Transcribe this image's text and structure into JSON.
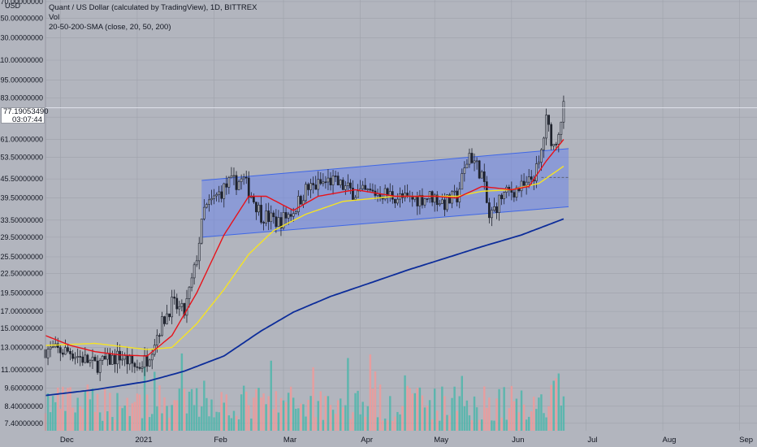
{
  "header": {
    "title": "Quant / US Dollar (calculated by TradingView), 1D, BITTREX",
    "volume_label": "Vol",
    "sma_label": "20-50-200-SMA (close, 20, 50, 200)"
  },
  "currency": "USD",
  "last_price": {
    "value": "77.19053490",
    "countdown": "03:07:44"
  },
  "colors": {
    "background": "#b2b5be",
    "up": "#4db6ac",
    "down": "#ef9a9a",
    "candle": "#1e222d",
    "sma20": "#e8121a",
    "sma50": "#f5e324",
    "sma200": "#0d2d9a",
    "channel_fill": "#6d85e8",
    "channel_line": "#3f67e6"
  },
  "chart_data": {
    "type": "candlestick",
    "title": "Quant / US Dollar (calculated by TradingView), 1D, BITTREX",
    "y_scale": "log",
    "ylim": [
      7.0,
      172.0
    ],
    "y_ticks": [
      "170.00000000",
      "150.00000000",
      "130.00000000",
      "110.00000000",
      "95.00000000",
      "83.00000000",
      "72.00000000",
      "61.00000000",
      "53.50000000",
      "45.50000000",
      "39.50000000",
      "33.50000000",
      "29.50000000",
      "25.50000000",
      "22.50000000",
      "19.50000000",
      "17.00000000",
      "15.00000000",
      "13.00000000",
      "11.00000000",
      "9.60000000",
      "8.40000000",
      "7.40000000"
    ],
    "x_ticks": [
      "Dec",
      "2021",
      "Feb",
      "Mar",
      "Apr",
      "May",
      "Jun",
      "Jul",
      "Aug",
      "Sep"
    ],
    "x_range": [
      "2020-11-25",
      "2021-09-08"
    ],
    "last_date": "2021-06-22",
    "grid": true,
    "close_keypoints": [
      [
        "2020-11-25",
        12.8
      ],
      [
        "2020-12-05",
        12.6
      ],
      [
        "2020-12-15",
        11.4
      ],
      [
        "2020-12-25",
        12.2
      ],
      [
        "2021-01-01",
        11.2
      ],
      [
        "2021-01-05",
        12.0
      ],
      [
        "2021-01-10",
        15.0
      ],
      [
        "2021-01-15",
        18.0
      ],
      [
        "2021-01-20",
        16.8
      ],
      [
        "2021-01-24",
        23.0
      ],
      [
        "2021-01-28",
        36.0
      ],
      [
        "2021-02-02",
        40.0
      ],
      [
        "2021-02-07",
        44.0
      ],
      [
        "2021-02-13",
        45.0
      ],
      [
        "2021-02-20",
        35.0
      ],
      [
        "2021-02-27",
        33.0
      ],
      [
        "2021-03-05",
        36.0
      ],
      [
        "2021-03-10",
        42.0
      ],
      [
        "2021-03-20",
        45.0
      ],
      [
        "2021-03-30",
        41.0
      ],
      [
        "2021-04-10",
        41.0
      ],
      [
        "2021-04-20",
        39.0
      ],
      [
        "2021-04-30",
        40.0
      ],
      [
        "2021-05-05",
        38.0
      ],
      [
        "2021-05-10",
        40.0
      ],
      [
        "2021-05-15",
        55.0
      ],
      [
        "2021-05-20",
        47.0
      ],
      [
        "2021-05-23",
        34.0
      ],
      [
        "2021-05-28",
        40.0
      ],
      [
        "2021-06-02",
        42.0
      ],
      [
        "2021-06-07",
        43.0
      ],
      [
        "2021-06-12",
        50.0
      ],
      [
        "2021-06-15",
        70.0
      ],
      [
        "2021-06-18",
        58.0
      ],
      [
        "2021-06-20",
        66.0
      ],
      [
        "2021-06-22",
        77.19
      ]
    ],
    "sma20_keypoints": [
      [
        "2020-11-25",
        14.2
      ],
      [
        "2020-12-05",
        13.2
      ],
      [
        "2020-12-15",
        12.6
      ],
      [
        "2020-12-25",
        12.3
      ],
      [
        "2021-01-05",
        12.2
      ],
      [
        "2021-01-15",
        14.2
      ],
      [
        "2021-01-25",
        19.5
      ],
      [
        "2021-02-05",
        30.0
      ],
      [
        "2021-02-15",
        40.0
      ],
      [
        "2021-02-22",
        40.0
      ],
      [
        "2021-03-05",
        36.0
      ],
      [
        "2021-03-15",
        40.0
      ],
      [
        "2021-03-30",
        42.0
      ],
      [
        "2021-04-15",
        40.0
      ],
      [
        "2021-05-01",
        40.0
      ],
      [
        "2021-05-10",
        39.5
      ],
      [
        "2021-05-20",
        43.0
      ],
      [
        "2021-06-01",
        42.0
      ],
      [
        "2021-06-08",
        43.0
      ],
      [
        "2021-06-15",
        52.0
      ],
      [
        "2021-06-22",
        61.0
      ]
    ],
    "sma50_keypoints": [
      [
        "2020-11-25",
        13.2
      ],
      [
        "2020-12-15",
        13.4
      ],
      [
        "2021-01-05",
        12.8
      ],
      [
        "2021-01-15",
        13.0
      ],
      [
        "2021-01-25",
        15.5
      ],
      [
        "2021-02-05",
        20.0
      ],
      [
        "2021-02-15",
        26.0
      ],
      [
        "2021-02-25",
        31.0
      ],
      [
        "2021-03-10",
        35.0
      ],
      [
        "2021-03-25",
        38.5
      ],
      [
        "2021-04-15",
        40.0
      ],
      [
        "2021-05-10",
        40.0
      ],
      [
        "2021-05-20",
        41.5
      ],
      [
        "2021-06-01",
        42.0
      ],
      [
        "2021-06-12",
        44.0
      ],
      [
        "2021-06-22",
        50.0
      ]
    ],
    "sma200_keypoints": [
      [
        "2020-11-25",
        9.1
      ],
      [
        "2020-12-15",
        9.5
      ],
      [
        "2021-01-05",
        10.1
      ],
      [
        "2021-01-20",
        10.9
      ],
      [
        "2021-02-05",
        12.2
      ],
      [
        "2021-02-20",
        14.7
      ],
      [
        "2021-03-05",
        16.9
      ],
      [
        "2021-03-20",
        19.0
      ],
      [
        "2021-04-05",
        21.0
      ],
      [
        "2021-04-20",
        23.1
      ],
      [
        "2021-05-05",
        25.2
      ],
      [
        "2021-05-20",
        27.5
      ],
      [
        "2021-06-05",
        30.0
      ],
      [
        "2021-06-22",
        33.8
      ]
    ],
    "channel": {
      "upper": [
        [
          "2021-01-27",
          45.0
        ],
        [
          "2021-06-24",
          57.0
        ]
      ],
      "lower": [
        [
          "2021-01-27",
          29.5
        ],
        [
          "2021-06-24",
          37.0
        ]
      ],
      "midline": [
        [
          "2021-06-13",
          46.0
        ],
        [
          "2021-06-24",
          46.0
        ]
      ]
    },
    "volume_scale": "relative"
  }
}
